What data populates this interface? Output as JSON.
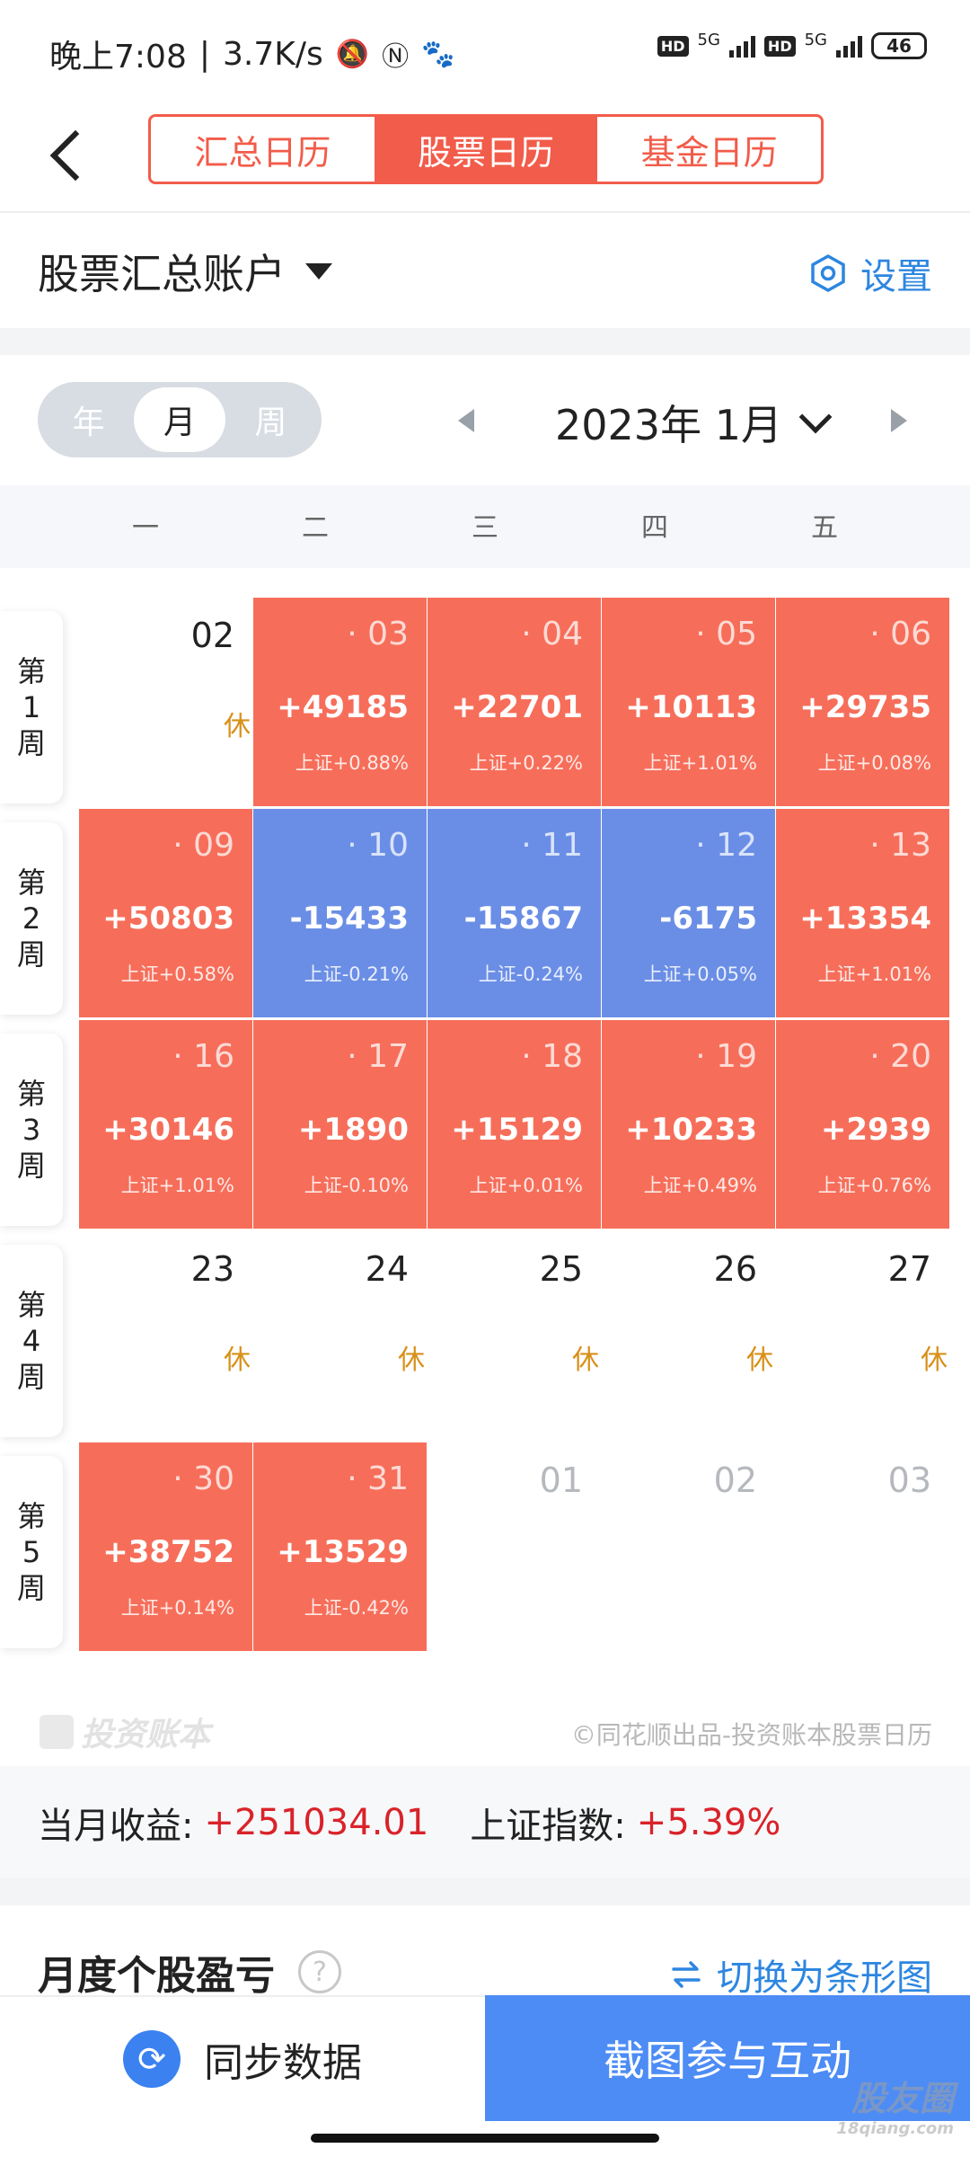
{
  "status_bar": {
    "time": "晚上7:08",
    "speed": "3.7K/s",
    "hd1": "HD",
    "net1": "5G",
    "hd2": "HD",
    "net2": "5G",
    "battery": "46"
  },
  "header": {
    "tabs": [
      {
        "label": "汇总日历"
      },
      {
        "label": "股票日历"
      },
      {
        "label": "基金日历"
      }
    ]
  },
  "account": {
    "name": "股票汇总账户",
    "settings_label": "设置"
  },
  "toolbar": {
    "view_options": [
      "年",
      "月",
      "周"
    ],
    "month_label": "2023年 1月"
  },
  "weekdays": [
    "一",
    "二",
    "三",
    "四",
    "五"
  ],
  "calendar": {
    "week_labels": [
      [
        "第",
        "1",
        "周"
      ],
      [
        "第",
        "2",
        "周"
      ],
      [
        "第",
        "3",
        "周"
      ],
      [
        "第",
        "4",
        "周"
      ],
      [
        "第",
        "5",
        "周"
      ]
    ],
    "weeks": [
      [
        {
          "date": "02",
          "rest": "休"
        },
        {
          "date": "· 03",
          "profit": "+49185",
          "index": "上证+0.88%"
        },
        {
          "date": "· 04",
          "profit": "+22701",
          "index": "上证+0.22%"
        },
        {
          "date": "· 05",
          "profit": "+10113",
          "index": "上证+1.01%"
        },
        {
          "date": "· 06",
          "profit": "+29735",
          "index": "上证+0.08%"
        }
      ],
      [
        {
          "date": "· 09",
          "profit": "+50803",
          "index": "上证+0.58%"
        },
        {
          "date": "· 10",
          "profit": "-15433",
          "index": "上证-0.21%"
        },
        {
          "date": "· 11",
          "profit": "-15867",
          "index": "上证-0.24%"
        },
        {
          "date": "· 12",
          "profit": "-6175",
          "index": "上证+0.05%"
        },
        {
          "date": "· 13",
          "profit": "+13354",
          "index": "上证+1.01%"
        }
      ],
      [
        {
          "date": "· 16",
          "profit": "+30146",
          "index": "上证+1.01%"
        },
        {
          "date": "· 17",
          "profit": "+1890",
          "index": "上证-0.10%"
        },
        {
          "date": "· 18",
          "profit": "+15129",
          "index": "上证+0.01%"
        },
        {
          "date": "· 19",
          "profit": "+10233",
          "index": "上证+0.49%"
        },
        {
          "date": "· 20",
          "profit": "+2939",
          "index": "上证+0.76%"
        }
      ],
      [
        {
          "date": "23",
          "rest": "休"
        },
        {
          "date": "24",
          "rest": "休"
        },
        {
          "date": "25",
          "rest": "休"
        },
        {
          "date": "26",
          "rest": "休"
        },
        {
          "date": "27",
          "rest": "休"
        }
      ],
      [
        {
          "date": "· 30",
          "profit": "+38752",
          "index": "上证+0.14%"
        },
        {
          "date": "· 31",
          "profit": "+13529",
          "index": "上证-0.42%"
        },
        {
          "date": "01"
        },
        {
          "date": "02"
        },
        {
          "date": "03"
        }
      ]
    ]
  },
  "brand": {
    "logo_text": "投资账本",
    "credit": "©同花顺出品-投资账本股票日历"
  },
  "summary": {
    "month_profit_label": "当月收益:",
    "month_profit_value": "+251034.01",
    "index_label": "上证指数:",
    "index_value": "+5.39%"
  },
  "section": {
    "title": "月度个股盈亏",
    "help": "?",
    "switch_label": "切换为条形图"
  },
  "bottom": {
    "sync_label": "同步数据",
    "share_label": "截图参与互动"
  },
  "watermark": {
    "main": "股友圈",
    "sub": "18qiang.com"
  },
  "colors": {
    "accent": "#f25c4a",
    "profit_cell": "#f66e5a",
    "loss_cell": "#6a8ee6",
    "link_blue": "#2d86e0",
    "rest_orange": "#d89018",
    "positive_text": "#d9232a"
  }
}
